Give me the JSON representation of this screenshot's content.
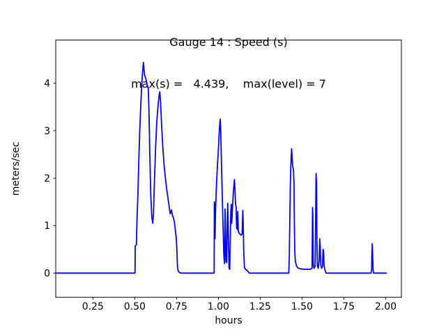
{
  "title": {
    "line1": "Gauge 14 : Speed (s)",
    "line2": "max(s) =   4.439,    max(level) = 7"
  },
  "figure": {
    "background": "#ffffff",
    "frame_color": "#000000",
    "tick_color": "#000000",
    "text_color": "#000000"
  },
  "chart_data": {
    "type": "line",
    "title": "Gauge 14 : Speed (s)",
    "subtitle": "max(s) =   4.439,    max(level) = 7",
    "xlabel": "hours",
    "ylabel": "meters/sec",
    "max_s": 4.439,
    "max_level": 7,
    "xlim": [
      0.028,
      2.094
    ],
    "ylim": [
      -0.51,
      4.91
    ],
    "xticks": [
      0.25,
      0.5,
      0.75,
      1.0,
      1.25,
      1.5,
      1.75,
      2.0
    ],
    "xtick_labels": [
      "0.25",
      "0.50",
      "0.75",
      "1.00",
      "1.25",
      "1.50",
      "1.75",
      "2.00"
    ],
    "yticks": [
      0,
      1,
      2,
      3,
      4
    ],
    "ytick_labels": [
      "0",
      "1",
      "2",
      "3",
      "4"
    ],
    "grid": false,
    "legend": "none",
    "line_color": "#0000ff",
    "line_width": 1.8,
    "series": [
      {
        "name": "Speed (s)",
        "points": [
          [
            0.03,
            0
          ],
          [
            0.502,
            0
          ],
          [
            0.503,
            0.57
          ],
          [
            0.51,
            0.6
          ],
          [
            0.513,
            1.05
          ],
          [
            0.518,
            1.55
          ],
          [
            0.524,
            2.3
          ],
          [
            0.53,
            3.0
          ],
          [
            0.537,
            3.6
          ],
          [
            0.545,
            4.15
          ],
          [
            0.552,
            4.439
          ],
          [
            0.556,
            4.28
          ],
          [
            0.559,
            4.17
          ],
          [
            0.566,
            4.1
          ],
          [
            0.571,
            4.02
          ],
          [
            0.576,
            3.95
          ],
          [
            0.581,
            3.9
          ],
          [
            0.585,
            3.45
          ],
          [
            0.59,
            2.55
          ],
          [
            0.596,
            1.65
          ],
          [
            0.602,
            1.18
          ],
          [
            0.608,
            1.05
          ],
          [
            0.612,
            1.25
          ],
          [
            0.618,
            1.95
          ],
          [
            0.625,
            2.65
          ],
          [
            0.632,
            3.2
          ],
          [
            0.64,
            3.55
          ],
          [
            0.646,
            3.75
          ],
          [
            0.65,
            3.82
          ],
          [
            0.655,
            3.55
          ],
          [
            0.661,
            3.1
          ],
          [
            0.668,
            2.65
          ],
          [
            0.675,
            2.3
          ],
          [
            0.682,
            2.05
          ],
          [
            0.69,
            1.8
          ],
          [
            0.698,
            1.6
          ],
          [
            0.706,
            1.4
          ],
          [
            0.712,
            1.25
          ],
          [
            0.716,
            1.3
          ],
          [
            0.72,
            1.33
          ],
          [
            0.725,
            1.22
          ],
          [
            0.731,
            1.17
          ],
          [
            0.737,
            1.08
          ],
          [
            0.743,
            0.9
          ],
          [
            0.748,
            0.75
          ],
          [
            0.752,
            0.5
          ],
          [
            0.755,
            0.18
          ],
          [
            0.759,
            0.05
          ],
          [
            0.765,
            0.02
          ],
          [
            0.776,
            0
          ],
          [
            0.975,
            0
          ],
          [
            0.976,
            1.5
          ],
          [
            0.978,
            1.42
          ],
          [
            0.98,
            0.72
          ],
          [
            0.983,
            1.3
          ],
          [
            0.986,
            1.6
          ],
          [
            0.99,
            1.95
          ],
          [
            0.995,
            2.3
          ],
          [
            1.0,
            2.6
          ],
          [
            1.005,
            2.95
          ],
          [
            1.009,
            3.18
          ],
          [
            1.011,
            3.245
          ],
          [
            1.014,
            3.0
          ],
          [
            1.017,
            2.55
          ],
          [
            1.021,
            1.95
          ],
          [
            1.025,
            1.4
          ],
          [
            1.029,
            0.85
          ],
          [
            1.033,
            0.35
          ],
          [
            1.037,
            0.2
          ],
          [
            1.04,
            1.35
          ],
          [
            1.043,
            0.8
          ],
          [
            1.046,
            0.25
          ],
          [
            1.05,
            0.22
          ],
          [
            1.053,
            1.05
          ],
          [
            1.056,
            1.47
          ],
          [
            1.06,
            0.75
          ],
          [
            1.064,
            0.1
          ],
          [
            1.068,
            0.08
          ],
          [
            1.071,
            0.65
          ],
          [
            1.074,
            1.25
          ],
          [
            1.077,
            1.45
          ],
          [
            1.08,
            1.05
          ],
          [
            1.084,
            1.35
          ],
          [
            1.088,
            1.6
          ],
          [
            1.092,
            1.82
          ],
          [
            1.096,
            1.97
          ],
          [
            1.099,
            1.78
          ],
          [
            1.103,
            1.45
          ],
          [
            1.106,
            1.4
          ],
          [
            1.109,
            0.95
          ],
          [
            1.113,
            0.92
          ],
          [
            1.116,
            1.3
          ],
          [
            1.119,
            0.88
          ],
          [
            1.124,
            0.84
          ],
          [
            1.13,
            0.82
          ],
          [
            1.136,
            0.8
          ],
          [
            1.142,
            0.82
          ],
          [
            1.146,
            1.32
          ],
          [
            1.149,
            0.95
          ],
          [
            1.152,
            0.4
          ],
          [
            1.156,
            0.12
          ],
          [
            1.162,
            0.08
          ],
          [
            1.17,
            0.06
          ],
          [
            1.178,
            0.03
          ],
          [
            1.184,
            0
          ],
          [
            1.421,
            0
          ],
          [
            1.424,
            0.35
          ],
          [
            1.427,
            1.1
          ],
          [
            1.43,
            1.8
          ],
          [
            1.433,
            2.25
          ],
          [
            1.436,
            2.5
          ],
          [
            1.438,
            2.62
          ],
          [
            1.441,
            2.45
          ],
          [
            1.443,
            2.3
          ],
          [
            1.446,
            2.22
          ],
          [
            1.449,
            2.18
          ],
          [
            1.452,
            1.9
          ],
          [
            1.454,
            1.1
          ],
          [
            1.457,
            0.45
          ],
          [
            1.46,
            0.25
          ],
          [
            1.466,
            0.16
          ],
          [
            1.475,
            0.11
          ],
          [
            1.49,
            0.09
          ],
          [
            1.51,
            0.08
          ],
          [
            1.53,
            0.08
          ],
          [
            1.55,
            0.08
          ],
          [
            1.56,
            0.1
          ],
          [
            1.563,
            1.38
          ],
          [
            1.565,
            1.2
          ],
          [
            1.567,
            0.18
          ],
          [
            1.572,
            0.1
          ],
          [
            1.578,
            0.14
          ],
          [
            1.582,
            1.3
          ],
          [
            1.584,
            2.1
          ],
          [
            1.587,
            1.9
          ],
          [
            1.589,
            0.7
          ],
          [
            1.592,
            0.15
          ],
          [
            1.597,
            0.1
          ],
          [
            1.602,
            0.25
          ],
          [
            1.606,
            0.72
          ],
          [
            1.609,
            0.55
          ],
          [
            1.612,
            0.18
          ],
          [
            1.617,
            0.1
          ],
          [
            1.622,
            0.14
          ],
          [
            1.626,
            0.5
          ],
          [
            1.629,
            0.45
          ],
          [
            1.632,
            0.15
          ],
          [
            1.637,
            0.07
          ],
          [
            1.643,
            0
          ],
          [
            1.912,
            0
          ],
          [
            1.916,
            0.05
          ],
          [
            1.918,
            0.45
          ],
          [
            1.92,
            0.62
          ],
          [
            1.922,
            0.4
          ],
          [
            1.925,
            0.06
          ],
          [
            1.928,
            0
          ],
          [
            2.005,
            0
          ]
        ]
      }
    ]
  }
}
